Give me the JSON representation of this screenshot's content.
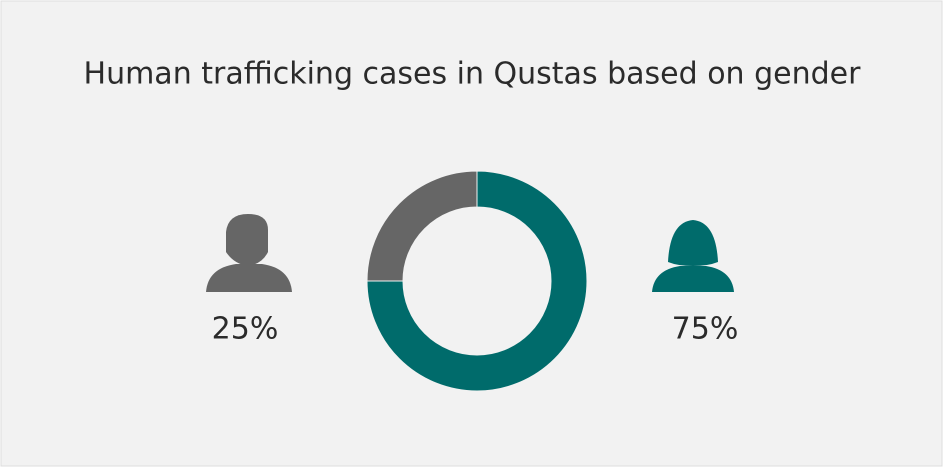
{
  "chart_data": {
    "type": "pie",
    "title": "Human trafficking cases in Qustas based on gender",
    "donut": true,
    "series": [
      {
        "color": "#666666",
        "values": [
          25
        ],
        "value_labels": [
          "25%"
        ]
      },
      {
        "color": "#006b6b",
        "values": [
          75
        ],
        "value_labels": [
          "75%"
        ]
      }
    ]
  }
}
